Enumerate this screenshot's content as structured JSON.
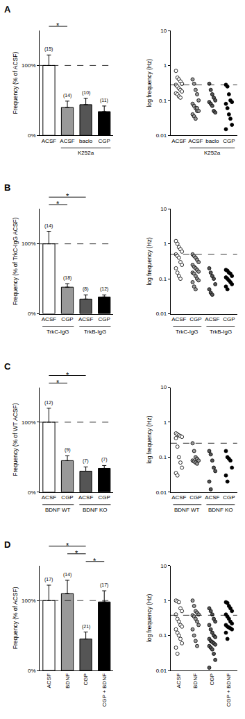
{
  "chart_data": [
    {
      "type": "bar",
      "title": "A",
      "ylabel": "Frequency (% of ACSF)",
      "categories": [
        "ACSF",
        "ACSF",
        "baclo",
        "CGP"
      ],
      "values": [
        100,
        40,
        44,
        34
      ],
      "errors": [
        15,
        9,
        9,
        8
      ],
      "n": [
        "(15)",
        "(14)",
        "(10)",
        "(11)"
      ],
      "colors": [
        "#ffffff",
        "#999999",
        "#555555",
        "#000000"
      ],
      "ylim": [
        0,
        150
      ],
      "yticks": [
        {
          "value": 0,
          "label": "0%"
        },
        {
          "value": 100,
          "label": "100%"
        }
      ],
      "reference_line": 100,
      "significance": [
        {
          "from": 0,
          "to": 1,
          "label": "*"
        }
      ],
      "groups": [
        {
          "label": "K252a",
          "from": 1,
          "to": 3
        }
      ]
    },
    {
      "type": "strip",
      "ylabel": "log frequency (Hz)",
      "log": "y",
      "marker": "circle",
      "categories": [
        "ACSF",
        "ACSF",
        "baclo",
        "CGP"
      ],
      "values": [
        [
          0.7,
          0.45,
          0.4,
          0.35,
          0.3,
          0.28,
          0.25,
          0.22,
          0.2,
          0.18,
          0.16,
          0.15,
          0.13,
          0.12,
          0.3
        ],
        [
          0.4,
          0.3,
          0.2,
          0.15,
          0.1,
          0.08,
          0.07,
          0.06,
          0.05,
          0.05,
          0.04,
          0.035,
          0.03,
          0.06
        ],
        [
          0.3,
          0.2,
          0.15,
          0.12,
          0.1,
          0.09,
          0.08,
          0.07,
          0.05,
          0.045
        ],
        [
          0.28,
          0.25,
          0.15,
          0.1,
          0.09,
          0.08,
          0.06,
          0.04,
          0.03,
          0.02,
          0.015
        ]
      ],
      "colors": [
        "#ffffff",
        "#999999",
        "#555555",
        "#000000"
      ],
      "ylim": [
        0.01,
        10
      ],
      "yticks": [
        0.01,
        0.1,
        1,
        10
      ],
      "reference_line": 0.28,
      "groups": [
        {
          "label": "K252a",
          "from": 1,
          "to": 3
        }
      ]
    },
    {
      "type": "bar",
      "title": "B",
      "ylabel": "Frequency (% of TrkC-IgG ACSF)",
      "categories": [
        "ACSF",
        "CGP",
        "ACSF",
        "CGP"
      ],
      "values": [
        100,
        38,
        21,
        24
      ],
      "errors": [
        18,
        5,
        6,
        3
      ],
      "n": [
        "(14)",
        "(18)",
        "(8)",
        "(12)"
      ],
      "colors": [
        "#ffffff",
        "#999999",
        "#555555",
        "#000000"
      ],
      "ylim": [
        0,
        150
      ],
      "yticks": [
        {
          "value": 0,
          "label": "0%"
        },
        {
          "value": 100,
          "label": "100%"
        }
      ],
      "reference_line": 100,
      "significance": [
        {
          "from": 0,
          "to": 1,
          "label": "*"
        },
        {
          "from": 0,
          "to": 2,
          "label": "*"
        }
      ],
      "groups": [
        {
          "label": "TrkC-IgG",
          "from": 0,
          "to": 1
        },
        {
          "label": "TrkB-IgG",
          "from": 2,
          "to": 3
        }
      ]
    },
    {
      "type": "strip",
      "ylabel": "log frequency (Hz)",
      "log": "y",
      "marker": "circle",
      "categories": [
        "ACSF",
        "CGP",
        "ACSF",
        "CGP"
      ],
      "values": [
        [
          1.2,
          1.0,
          0.8,
          0.7,
          0.6,
          0.5,
          0.45,
          0.4,
          0.3,
          0.25,
          0.2,
          0.15,
          0.12,
          0.1
        ],
        [
          0.5,
          0.45,
          0.4,
          0.35,
          0.3,
          0.25,
          0.22,
          0.2,
          0.18,
          0.16,
          0.15,
          0.14,
          0.12,
          0.1,
          0.09,
          0.08,
          0.06,
          0.05
        ],
        [
          0.2,
          0.15,
          0.12,
          0.1,
          0.07,
          0.05,
          0.04,
          0.035
        ],
        [
          0.18,
          0.17,
          0.15,
          0.14,
          0.12,
          0.11,
          0.1,
          0.09,
          0.08,
          0.07,
          0.06,
          0.05
        ]
      ],
      "colors": [
        "#ffffff",
        "#999999",
        "#555555",
        "#000000"
      ],
      "ylim": [
        0.01,
        10
      ],
      "yticks": [
        0.01,
        0.1,
        1,
        10
      ],
      "reference_line": 0.5,
      "groups": [
        {
          "label": "TrkC-IgG",
          "from": 0,
          "to": 1
        },
        {
          "label": "TrkB-IgG",
          "from": 2,
          "to": 3
        }
      ]
    },
    {
      "type": "bar",
      "title": "C",
      "ylabel": "Frequency (% of WT ACSF)",
      "categories": [
        "ACSF",
        "CGP",
        "ACSF",
        "CGP"
      ],
      "values": [
        100,
        45,
        30,
        34
      ],
      "errors": [
        20,
        7,
        6,
        4
      ],
      "n": [
        "(12)",
        "(9)",
        "(7)",
        "(7)"
      ],
      "colors": [
        "#ffffff",
        "#999999",
        "#555555",
        "#000000"
      ],
      "ylim": [
        0,
        150
      ],
      "yticks": [
        {
          "value": 0,
          "label": "0%"
        },
        {
          "value": 100,
          "label": "100%"
        }
      ],
      "reference_line": 100,
      "significance": [
        {
          "from": 0,
          "to": 1,
          "label": "*"
        },
        {
          "from": 0,
          "to": 2,
          "label": "*"
        }
      ],
      "groups": [
        {
          "label": "BDNF WT",
          "from": 0,
          "to": 1
        },
        {
          "label": "BDNF KO",
          "from": 2,
          "to": 3
        }
      ]
    },
    {
      "type": "strip",
      "ylabel": "log frequency (Hz)",
      "log": "y",
      "marker": "circle",
      "categories": [
        "ACSF",
        "CGP",
        "ACSF",
        "CGP"
      ],
      "values": [
        [
          0.48,
          0.45,
          0.42,
          0.4,
          0.38,
          0.35,
          0.2,
          0.1,
          0.07,
          0.05,
          0.035,
          0.03
        ],
        [
          0.25,
          0.15,
          0.1,
          0.09,
          0.08,
          0.08,
          0.075,
          0.07,
          0.065
        ],
        [
          0.15,
          0.12,
          0.08,
          0.05,
          0.04,
          0.02,
          0.012
        ],
        [
          0.15,
          0.1,
          0.09,
          0.08,
          0.05,
          0.03,
          0.02
        ]
      ],
      "colors": [
        "#ffffff",
        "#999999",
        "#555555",
        "#000000"
      ],
      "ylim": [
        0.01,
        10
      ],
      "yticks": [
        0.01,
        0.1,
        1,
        10
      ],
      "reference_line": 0.25,
      "groups": [
        {
          "label": "BDNF WT",
          "from": 0,
          "to": 1
        },
        {
          "label": "BDNF KO",
          "from": 2,
          "to": 3
        }
      ]
    },
    {
      "type": "bar",
      "title": "D",
      "ylabel": "Frequency (% of ACSF)",
      "categories": [
        "ACSF",
        "BDNF",
        "CGP",
        "CGP + BDNF"
      ],
      "values": [
        100,
        110,
        45,
        98
      ],
      "errors": [
        22,
        19,
        10,
        16
      ],
      "n": [
        "(17)",
        "(14)",
        "(21)",
        "(17)"
      ],
      "colors": [
        "#ffffff",
        "#999999",
        "#555555",
        "#000000"
      ],
      "ylim": [
        0,
        150
      ],
      "yticks": [
        {
          "value": 0,
          "label": "0%"
        },
        {
          "value": 100,
          "label": "100%"
        }
      ],
      "reference_line": 100,
      "significance": [
        {
          "from": 2,
          "to": 3,
          "label": "*"
        },
        {
          "from": 1,
          "to": 2,
          "label": "*"
        },
        {
          "from": 0,
          "to": 2,
          "label": "*"
        }
      ]
    },
    {
      "type": "strip",
      "ylabel": "log frequency (Hz)",
      "log": "y",
      "marker": "circle",
      "categories": [
        "ACSF",
        "BDNF",
        "CGP",
        "CGP + BDNF"
      ],
      "values": [
        [
          1.0,
          0.95,
          0.9,
          0.6,
          0.5,
          0.4,
          0.3,
          0.25,
          0.2,
          0.18,
          0.15,
          0.12,
          0.1,
          0.08,
          0.06,
          0.045,
          0.03
        ],
        [
          1.0,
          0.7,
          0.5,
          0.45,
          0.4,
          0.38,
          0.35,
          0.3,
          0.25,
          0.2,
          0.15,
          0.1,
          0.07,
          0.05
        ],
        [
          0.6,
          0.5,
          0.4,
          0.3,
          0.25,
          0.2,
          0.15,
          0.12,
          0.1,
          0.09,
          0.08,
          0.07,
          0.065,
          0.06,
          0.055,
          0.05,
          0.045,
          0.04,
          0.03,
          0.02,
          0.012
        ],
        [
          0.9,
          0.85,
          0.7,
          0.6,
          0.5,
          0.4,
          0.35,
          0.3,
          0.25,
          0.22,
          0.2,
          0.18,
          0.17,
          0.16,
          0.15,
          0.12,
          0.08
        ]
      ],
      "colors": [
        "#ffffff",
        "#999999",
        "#555555",
        "#000000"
      ],
      "ylim": [
        0.01,
        10
      ],
      "yticks": [
        0.01,
        0.1,
        1,
        10
      ],
      "reference_line": 0.38
    }
  ]
}
